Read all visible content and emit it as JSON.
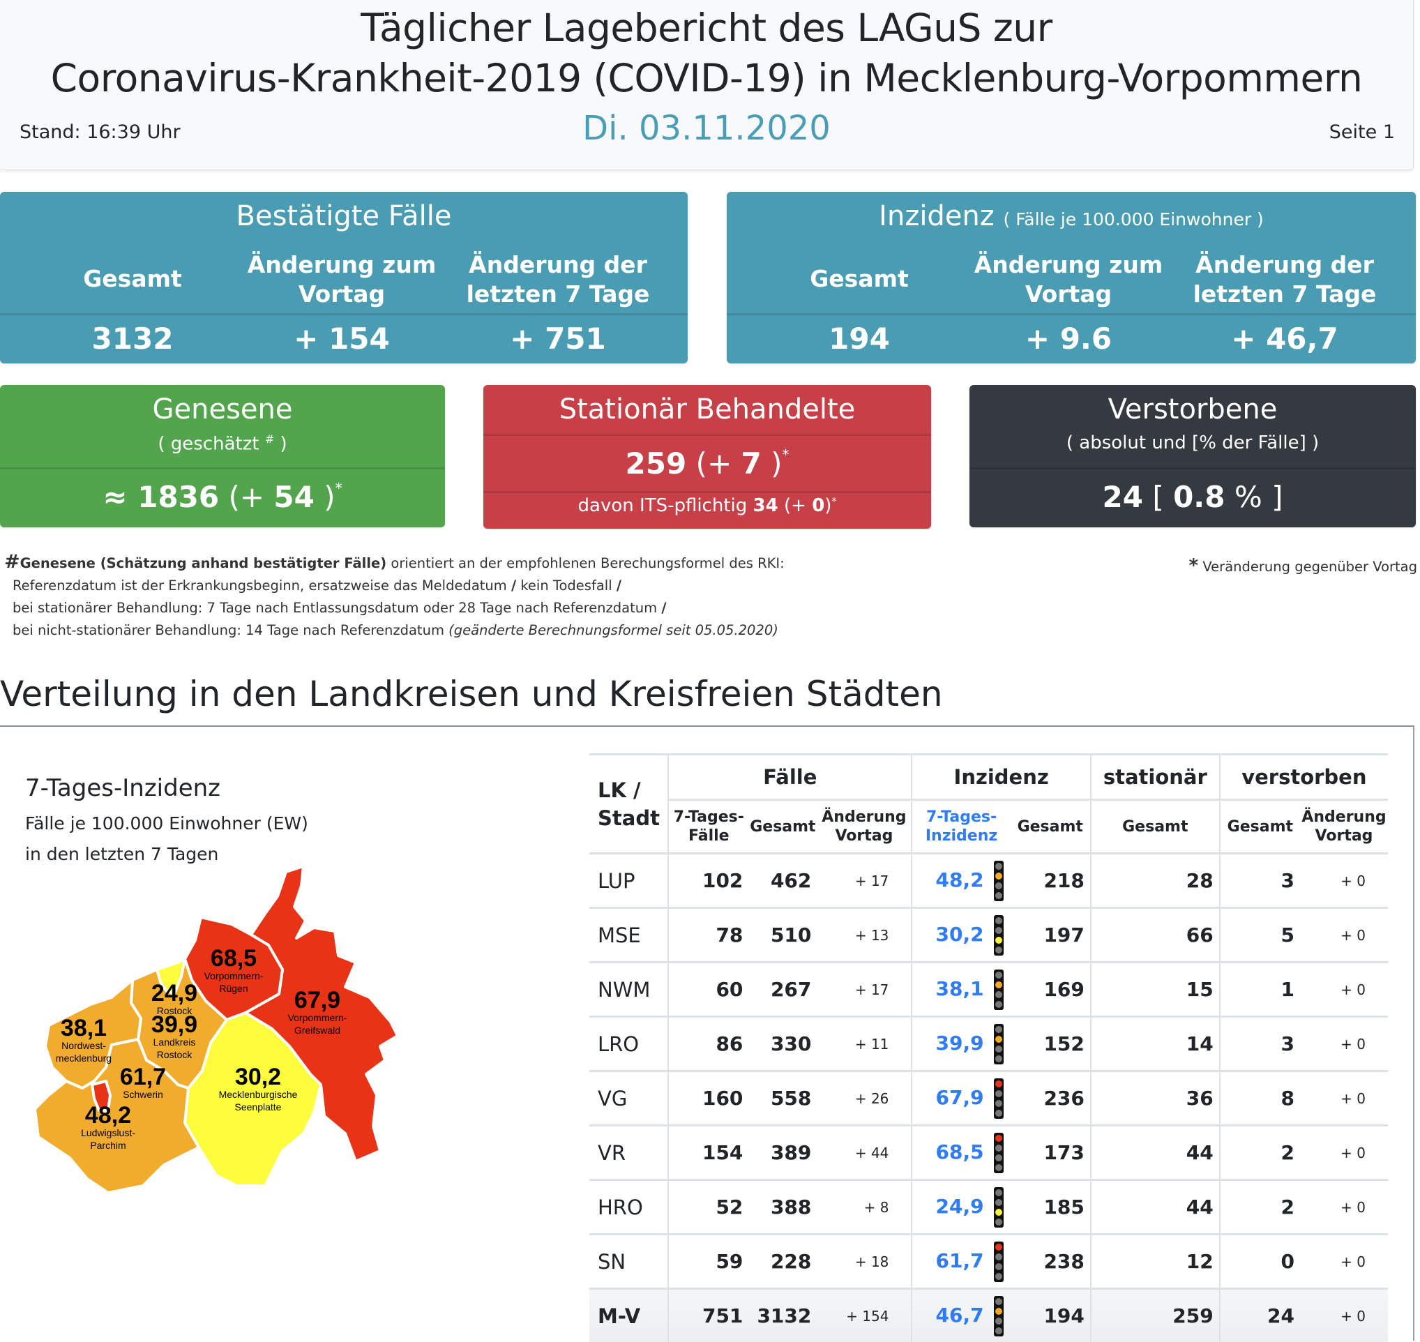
{
  "header": {
    "title_line1": "Täglicher Lagebericht des LAGuS zur",
    "title_line2": "Coronavirus-Krankheit-2019 (COVID-19) in Mecklenburg-Vorpommern",
    "stand": "Stand: 16:39 Uhr",
    "date": "Di. 03.11.2020",
    "page": "Seite 1"
  },
  "colors": {
    "teal": "#4a9cb2",
    "green": "#52a44d",
    "red": "#c74047",
    "dark": "#343a40",
    "date_accent": "#4a9db6",
    "incidence_blue": "#2f7cf6",
    "map_red": "#e83317",
    "map_orange": "#f1ab2d",
    "map_yellow": "#fdfd3d"
  },
  "cards": {
    "faelle": {
      "title": "Bestätigte Fälle",
      "headers": [
        "Gesamt",
        "Änderung zum\nVortag",
        "Änderung der\nletzten 7 Tage"
      ],
      "values": [
        "3132",
        "+ 154",
        "+ 751"
      ]
    },
    "inzidenz": {
      "title": "Inzidenz",
      "subtitle": "( Fälle je 100.000 Einwohner )",
      "headers": [
        "Gesamt",
        "Änderung zum\nVortag",
        "Änderung der\nletzten 7 Tage"
      ],
      "values": [
        "194",
        "+ 9.6",
        "+ 46,7"
      ]
    },
    "genesene": {
      "title": "Genesene",
      "subtitle_pre": "( geschätzt ",
      "subtitle_sup": "#",
      "subtitle_post": " )",
      "value_prefix": "≈ ",
      "value": "1836",
      "change_open": " (+ ",
      "change": "54",
      "change_close": " )",
      "asterisk": "*"
    },
    "stationaer": {
      "title": "Stationär Behandelte",
      "value": "259",
      "change_open": " (+ ",
      "change": "7",
      "change_close": " )",
      "asterisk": "*",
      "its_label": "davon ITS-pflichtig ",
      "its_value": "34",
      "its_change_open": " (+ ",
      "its_change": "0",
      "its_change_close": ")"
    },
    "verstorbene": {
      "title": "Verstorbene",
      "subtitle": "( absolut und [% der Fälle] )",
      "value": "24",
      "pct_open": " [ ",
      "pct": "0.8",
      "pct_close": " % ]"
    }
  },
  "notes": {
    "hash": "#",
    "bold": "Genesene (Schätzung anhand bestätigter Fälle)",
    "line1_rest": " orientiert an der empfohlenen Berechungsformel des RKI:",
    "line2a": "Referenzdatum ist der Erkrankungsbeginn, ersatzweise das Meldedatum ",
    "slash": "/",
    "line2b": " kein Todesfall ",
    "line3": "bei stationärer Behandlung: 7 Tage nach Entlassungsdatum oder 28 Tage nach Referenzdatum ",
    "line4": "bei nicht-stationärer Behandlung: 14 Tage nach Referenzdatum ",
    "line4_italic": "(geänderte Berechnungsformel seit 05.05.2020)",
    "asterisk": "*",
    "asterisk_text": " Veränderung gegenüber Vortag"
  },
  "section": {
    "title": "Verteilung in den Landkreisen und Kreisfreien Städten"
  },
  "map": {
    "title": "7-Tages-Inzidenz",
    "subtitle1": "Fälle je 100.000 Einwohner (EW)",
    "subtitle2": "in den letzten 7 Tagen",
    "regions": [
      {
        "id": "vr",
        "value": "68,5",
        "name1": "Vorpommern-",
        "name2": "Rügen",
        "level": "red"
      },
      {
        "id": "vg",
        "value": "67,9",
        "name1": "Vorpommern-",
        "name2": "Greifswald",
        "level": "red"
      },
      {
        "id": "hro",
        "value": "24,9",
        "name1": "Rostock",
        "name2": "",
        "level": "yellow"
      },
      {
        "id": "lro",
        "value": "39,9",
        "name1": "Landkreis",
        "name2": "Rostock",
        "level": "orange"
      },
      {
        "id": "nwm",
        "value": "38,1",
        "name1": "Nordwest-",
        "name2": "mecklenburg",
        "level": "orange"
      },
      {
        "id": "sn",
        "value": "61,7",
        "name1": "Schwerin",
        "name2": "",
        "level": "red"
      },
      {
        "id": "lup",
        "value": "48,2",
        "name1": "Ludwigslust-",
        "name2": "Parchim",
        "level": "orange"
      },
      {
        "id": "mse",
        "value": "30,2",
        "name1": "Mecklenburgische",
        "name2": "Seenplatte",
        "level": "yellow"
      }
    ]
  },
  "table": {
    "group_headers": {
      "lk": "LK /\nStadt",
      "faelle": "Fälle",
      "inzidenz": "Inzidenz",
      "stationaer": "stationär",
      "verstorben": "verstorben"
    },
    "sub_headers": {
      "f7": "7-Tages-\nFälle",
      "fg": "Gesamt",
      "fc": "Änderung\nVortag",
      "i7": "7-Tages-\nInzidenz",
      "ig": "Gesamt",
      "sg": "Gesamt",
      "vg": "Gesamt",
      "vc": "Änderung\nVortag"
    },
    "rows": [
      {
        "lk": "LUP",
        "f7": "102",
        "fg": "462",
        "fc": "+ 17",
        "i7": "48,2",
        "light": "orange",
        "ig": "218",
        "sg": "28",
        "vg": "3",
        "vc": "+ 0"
      },
      {
        "lk": "MSE",
        "f7": "78",
        "fg": "510",
        "fc": "+ 13",
        "i7": "30,2",
        "light": "yellow",
        "ig": "197",
        "sg": "66",
        "vg": "5",
        "vc": "+ 0"
      },
      {
        "lk": "NWM",
        "f7": "60",
        "fg": "267",
        "fc": "+ 17",
        "i7": "38,1",
        "light": "orange",
        "ig": "169",
        "sg": "15",
        "vg": "1",
        "vc": "+ 0"
      },
      {
        "lk": "LRO",
        "f7": "86",
        "fg": "330",
        "fc": "+ 11",
        "i7": "39,9",
        "light": "orange",
        "ig": "152",
        "sg": "14",
        "vg": "3",
        "vc": "+ 0"
      },
      {
        "lk": "VG",
        "f7": "160",
        "fg": "558",
        "fc": "+ 26",
        "i7": "67,9",
        "light": "red",
        "ig": "236",
        "sg": "36",
        "vg": "8",
        "vc": "+ 0"
      },
      {
        "lk": "VR",
        "f7": "154",
        "fg": "389",
        "fc": "+ 44",
        "i7": "68,5",
        "light": "red",
        "ig": "173",
        "sg": "44",
        "vg": "2",
        "vc": "+ 0"
      },
      {
        "lk": "HRO",
        "f7": "52",
        "fg": "388",
        "fc": "+ 8",
        "i7": "24,9",
        "light": "yellow",
        "ig": "185",
        "sg": "44",
        "vg": "2",
        "vc": "+ 0"
      },
      {
        "lk": "SN",
        "f7": "59",
        "fg": "228",
        "fc": "+ 18",
        "i7": "61,7",
        "light": "red",
        "ig": "238",
        "sg": "12",
        "vg": "0",
        "vc": "+ 0"
      }
    ],
    "total": {
      "lk": "M-V",
      "f7": "751",
      "fg": "3132",
      "fc": "+ 154",
      "i7": "46,7",
      "light": "orange",
      "ig": "194",
      "sg": "259",
      "vg": "24",
      "vc": "+ 0"
    }
  }
}
